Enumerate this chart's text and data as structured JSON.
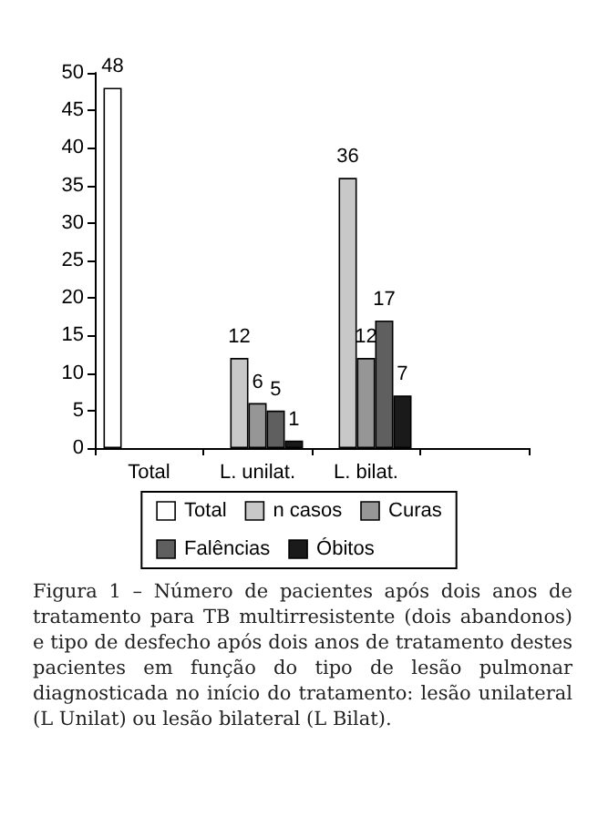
{
  "chart_data": {
    "type": "bar",
    "categories": [
      "Total",
      "L. unilat.",
      "L. bilat.",
      null
    ],
    "series": [
      {
        "name": "Total",
        "color": "#ffffff",
        "values": [
          48,
          null,
          null,
          null
        ]
      },
      {
        "name": "n casos",
        "color": "#c8c8c8",
        "values": [
          null,
          12,
          36,
          null
        ]
      },
      {
        "name": "Curas",
        "color": "#969696",
        "values": [
          null,
          6,
          12,
          null
        ]
      },
      {
        "name": "Falências",
        "color": "#5f5f5f",
        "values": [
          null,
          5,
          17,
          null
        ]
      },
      {
        "name": "Óbitos",
        "color": "#1a1a1a",
        "values": [
          null,
          1,
          7,
          null
        ]
      }
    ],
    "ylim": [
      0,
      50
    ],
    "yticks": [
      0,
      5,
      10,
      15,
      20,
      25,
      30,
      35,
      40,
      45,
      50
    ],
    "grid": false,
    "legend": "bottom",
    "data_labels": true,
    "annotations": [
      "Figura 1 – Número de pacientes após dois anos de tratamento para TB multirresistente (dois abandonos) e tipo de desfecho após dois anos de tratamento destes pacientes em função do tipo de lesão pulmonar diagnosticada no início do tratamento: lesão unilateral (L Unilat) ou lesão bilateral (L Bilat)."
    ]
  }
}
